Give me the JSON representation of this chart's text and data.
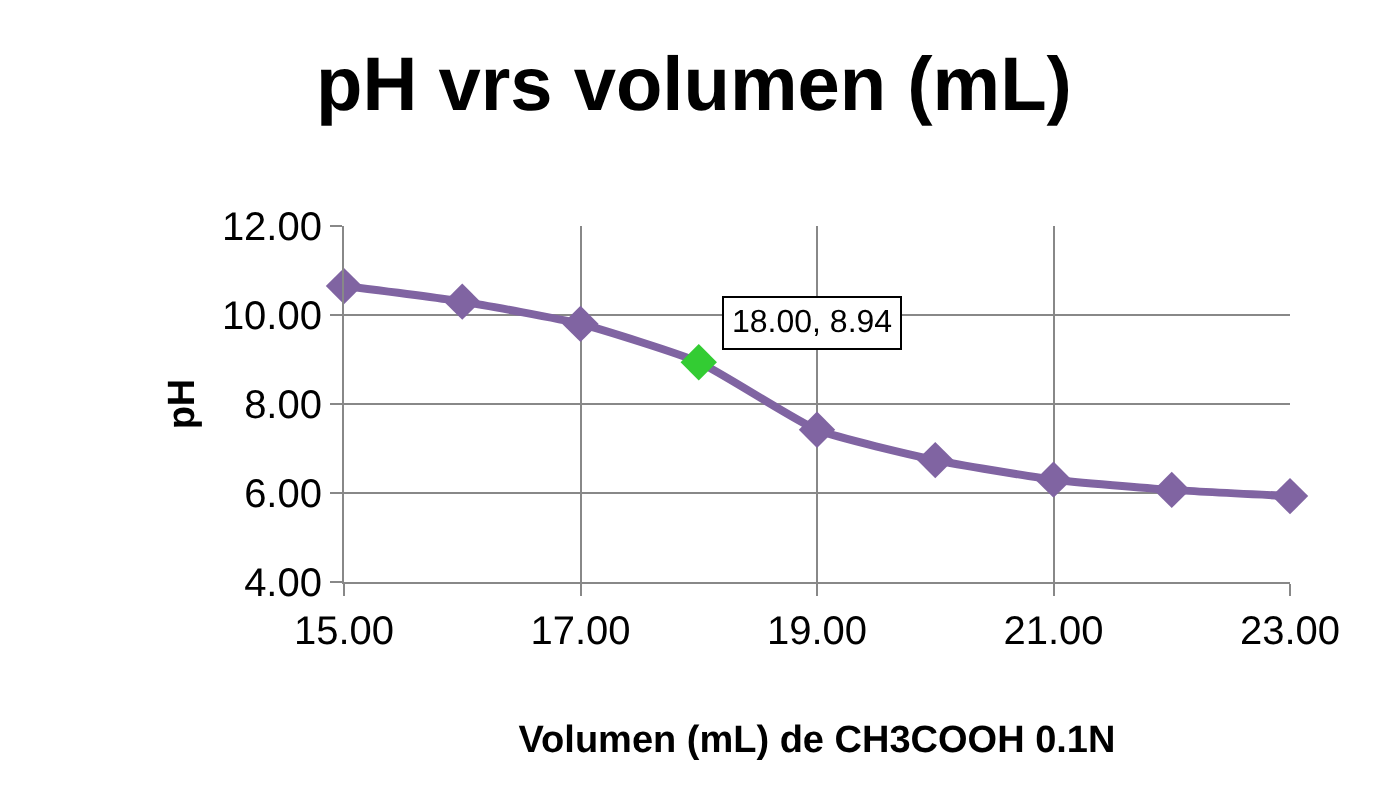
{
  "chart_data": {
    "type": "line",
    "title": "pH vrs volumen (mL)",
    "xlabel": "Volumen (mL) de CH3COOH 0.1N",
    "ylabel": "pH",
    "x": [
      15,
      16,
      17,
      18,
      19,
      20,
      21,
      22,
      23
    ],
    "series": [
      {
        "color": "#8064a2",
        "colors": [
          "#8064a2",
          "#8064a2",
          "#8064a2",
          "#33cc33",
          "#8064a2",
          "#8064a2",
          "#8064a2",
          "#8064a2",
          "#8064a2"
        ],
        "values": [
          10.65,
          10.3,
          9.8,
          8.94,
          7.42,
          6.74,
          6.3,
          6.07,
          5.93
        ]
      }
    ],
    "annotations": [
      {
        "text": "18.00, 8.94",
        "x": 18,
        "y": 8.94
      }
    ],
    "xlim": [
      15,
      23
    ],
    "xticks": [
      {
        "value": 15,
        "label": "15.00"
      },
      {
        "value": 17,
        "label": "17.00"
      },
      {
        "value": 19,
        "label": "19.00"
      },
      {
        "value": 21,
        "label": "21.00"
      },
      {
        "value": 23,
        "label": "23.00"
      }
    ],
    "ylim": [
      4,
      12
    ],
    "yticks": [
      {
        "value": 4,
        "label": "4.00"
      },
      {
        "value": 6,
        "label": "6.00"
      },
      {
        "value": 8,
        "label": "8.00"
      },
      {
        "value": 10,
        "label": "10.00"
      },
      {
        "value": 12,
        "label": "12.00"
      }
    ],
    "grid": true,
    "marker": "diamond",
    "line_style": "solid",
    "legend": false
  }
}
